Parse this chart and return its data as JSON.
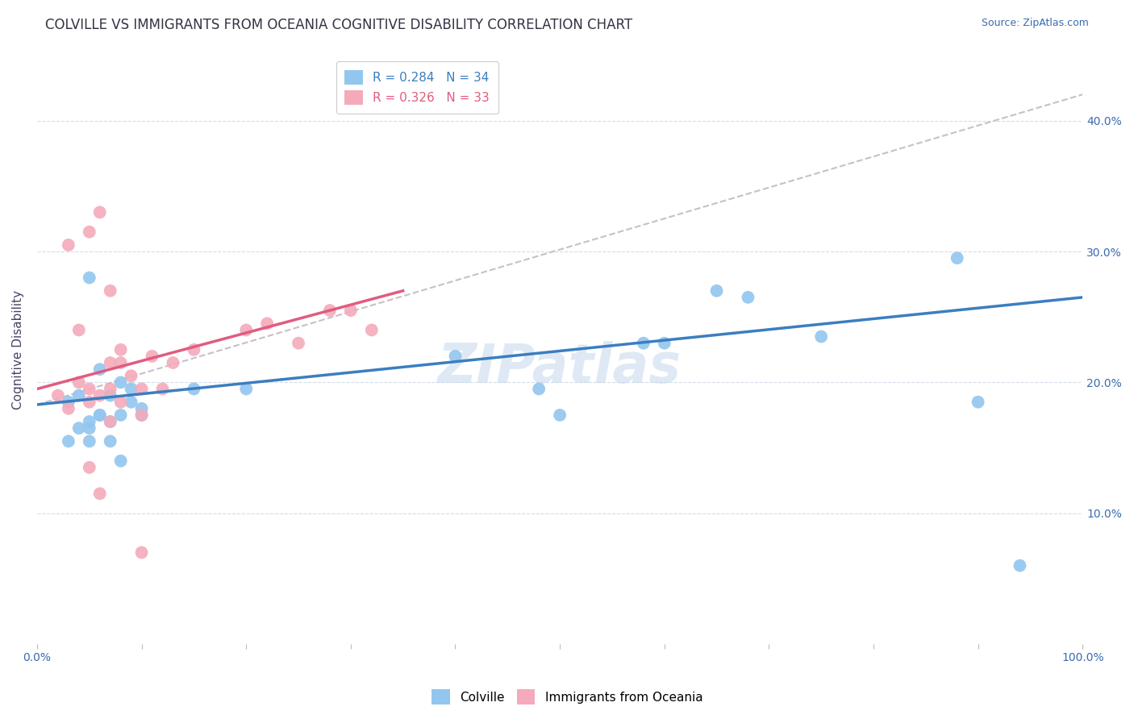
{
  "title": "COLVILLE VS IMMIGRANTS FROM OCEANIA COGNITIVE DISABILITY CORRELATION CHART",
  "source": "Source: ZipAtlas.com",
  "ylabel": "Cognitive Disability",
  "xlim": [
    0.0,
    1.0
  ],
  "ylim": [
    0.0,
    0.45
  ],
  "xticks": [
    0.0,
    0.1,
    0.2,
    0.3,
    0.4,
    0.5,
    0.6,
    0.7,
    0.8,
    0.9,
    1.0
  ],
  "yticks": [
    0.0,
    0.1,
    0.2,
    0.3,
    0.4
  ],
  "ytick_labels_right": [
    "",
    "10.0%",
    "20.0%",
    "30.0%",
    "40.0%"
  ],
  "xtick_labels": [
    "0.0%",
    "",
    "",
    "",
    "",
    "",
    "",
    "",
    "",
    "",
    "100.0%"
  ],
  "colville_color": "#93C6EE",
  "oceania_color": "#F4AABB",
  "colville_line_color": "#3B7EC0",
  "oceania_line_color": "#E05C80",
  "dashed_line_color": "#C8C0C8",
  "bg_color": "#FFFFFF",
  "grid_color": "#D4DCE8",
  "legend_R_color_blue": "#3B7EC0",
  "legend_R_color_pink": "#E05C80",
  "colville_R": 0.284,
  "colville_N": 34,
  "oceania_R": 0.326,
  "oceania_N": 33,
  "colville_scatter_x": [
    0.03,
    0.04,
    0.05,
    0.05,
    0.06,
    0.06,
    0.07,
    0.08,
    0.09,
    0.1,
    0.03,
    0.04,
    0.05,
    0.06,
    0.07,
    0.08,
    0.09,
    0.1,
    0.15,
    0.2,
    0.4,
    0.48,
    0.58,
    0.6,
    0.65,
    0.68,
    0.75,
    0.88,
    0.9,
    0.05,
    0.07,
    0.08,
    0.5,
    0.94
  ],
  "colville_scatter_y": [
    0.185,
    0.19,
    0.28,
    0.165,
    0.175,
    0.21,
    0.19,
    0.2,
    0.195,
    0.18,
    0.155,
    0.165,
    0.17,
    0.175,
    0.17,
    0.175,
    0.185,
    0.175,
    0.195,
    0.195,
    0.22,
    0.195,
    0.23,
    0.23,
    0.27,
    0.265,
    0.235,
    0.295,
    0.185,
    0.155,
    0.155,
    0.14,
    0.175,
    0.06
  ],
  "oceania_scatter_x": [
    0.02,
    0.03,
    0.04,
    0.05,
    0.06,
    0.07,
    0.08,
    0.04,
    0.05,
    0.06,
    0.07,
    0.08,
    0.1,
    0.03,
    0.05,
    0.07,
    0.08,
    0.09,
    0.1,
    0.11,
    0.12,
    0.13,
    0.15,
    0.2,
    0.22,
    0.25,
    0.28,
    0.3,
    0.32,
    0.05,
    0.06,
    0.07,
    0.1
  ],
  "oceania_scatter_y": [
    0.19,
    0.305,
    0.24,
    0.315,
    0.33,
    0.27,
    0.185,
    0.2,
    0.195,
    0.19,
    0.215,
    0.225,
    0.195,
    0.18,
    0.185,
    0.195,
    0.215,
    0.205,
    0.175,
    0.22,
    0.195,
    0.215,
    0.225,
    0.24,
    0.245,
    0.23,
    0.255,
    0.255,
    0.24,
    0.135,
    0.115,
    0.17,
    0.07
  ],
  "watermark": "ZIPatlas",
  "colville_trend_x": [
    0.0,
    1.0
  ],
  "colville_trend_y": [
    0.183,
    0.265
  ],
  "oceania_trend_x": [
    0.0,
    0.35
  ],
  "oceania_trend_y": [
    0.195,
    0.27
  ],
  "dashed_trend_x": [
    0.0,
    1.0
  ],
  "dashed_trend_y": [
    0.183,
    0.42
  ],
  "legend_label_colville": "Colville",
  "legend_label_oceania": "Immigrants from Oceania",
  "title_fontsize": 12,
  "axis_label_fontsize": 11,
  "tick_fontsize": 10,
  "legend_fontsize": 11
}
